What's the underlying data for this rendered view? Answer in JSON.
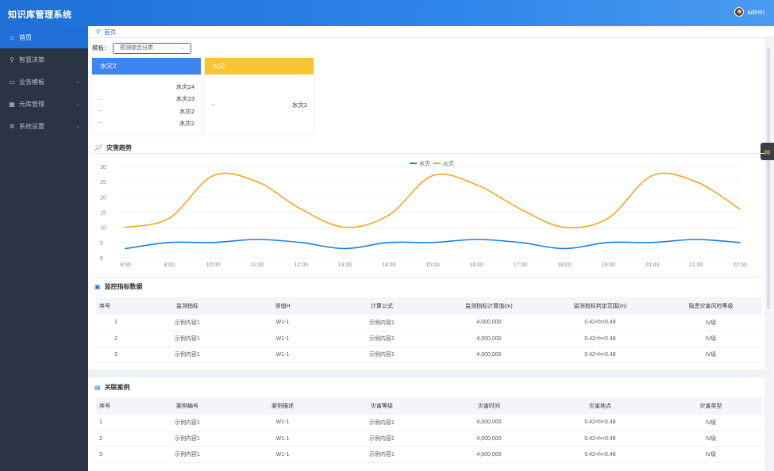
{
  "app": {
    "title": "知识库管理系统",
    "user": "admin"
  },
  "sidebar": {
    "items": [
      {
        "label": "首页",
        "icon": "home-icon",
        "active": true,
        "expandable": false
      },
      {
        "label": "智慧决策",
        "icon": "search-icon",
        "active": false,
        "expandable": false
      },
      {
        "label": "业务模板",
        "icon": "briefcase-icon",
        "active": false,
        "expandable": true
      },
      {
        "label": "元库管理",
        "icon": "grid-icon",
        "active": false,
        "expandable": true
      },
      {
        "label": "系统设置",
        "icon": "gear-icon",
        "active": false,
        "expandable": true
      }
    ]
  },
  "breadcrumb": {
    "label": "首页"
  },
  "filter": {
    "label": "模板：",
    "value": "预测综合分类"
  },
  "cards": [
    {
      "title": "水灾2",
      "color": "#3f85f0",
      "rows": [
        {
          "dash": "",
          "value": "水灾24"
        },
        {
          "dash": "...",
          "value": "水灾23"
        },
        {
          "dash": "--",
          "value": "水灾2"
        },
        {
          "dash": "--",
          "value": "水灾2"
        }
      ]
    },
    {
      "title": "火灾",
      "color": "#f7c531",
      "rows": [
        {
          "dash": "--",
          "value": "水灾2"
        }
      ]
    }
  ],
  "chart_section": {
    "title": "灾害趋势"
  },
  "chart_data": {
    "type": "line",
    "title": "",
    "xlabel": "",
    "ylabel": "",
    "categories": [
      "8:00",
      "9:00",
      "10:00",
      "11:00",
      "12:00",
      "13:00",
      "14:00",
      "15:00",
      "16:00",
      "17:00",
      "18:00",
      "19:00",
      "20:00",
      "21:00",
      "22:00"
    ],
    "ylim": [
      0,
      30
    ],
    "yticks": [
      0,
      5,
      10,
      15,
      20,
      25,
      30
    ],
    "legend_position": "top-center",
    "series": [
      {
        "name": "水灾",
        "color": "#1f7fe0",
        "values": [
          3,
          5,
          5,
          6,
          5,
          3,
          5,
          5,
          6,
          5,
          3,
          5,
          5,
          6,
          5
        ]
      },
      {
        "name": "火灾",
        "color": "#f5a623",
        "values": [
          10,
          13,
          27,
          25,
          16,
          10,
          14,
          27,
          24,
          16,
          10,
          13,
          27,
          25,
          16
        ]
      }
    ]
  },
  "monitor_section": {
    "title": "监控指标数据",
    "columns": [
      "序号",
      "监测指标",
      "测值H",
      "计算公式",
      "监测指标计算值(m)",
      "监测指标判定范围(m)",
      "隐患灾害风险等级"
    ],
    "rows": [
      [
        "1",
        "示例内容1",
        "W1-1",
        "示例内容1",
        "4,000,000",
        "0.42<h<0.48",
        "IV级"
      ],
      [
        "2",
        "示例内容1",
        "W1-1",
        "示例内容1",
        "4,000,000",
        "0.42<h<0.48",
        "IV级"
      ],
      [
        "3",
        "示例内容1",
        "W1-1",
        "示例内容1",
        "4,000,000",
        "0.42<h<0.48",
        "IV级"
      ]
    ]
  },
  "related_section": {
    "title": "关联案例",
    "columns": [
      "序号",
      "案例编号",
      "案例描述",
      "灾害等级",
      "灾害时间",
      "灾害地点",
      "灾害类型"
    ],
    "rows": [
      [
        "1",
        "示例内容1",
        "W1-1",
        "示例内容1",
        "4,000,000",
        "0.42<h<0.48",
        "IV级"
      ],
      [
        "2",
        "示例内容1",
        "W1-1",
        "示例内容1",
        "4,000,000",
        "0.42<h<0.48",
        "IV级"
      ],
      [
        "3",
        "示例内容1",
        "W1-1",
        "示例内容1",
        "4,000,000",
        "0.42<h<0.48",
        "IV级"
      ]
    ]
  }
}
